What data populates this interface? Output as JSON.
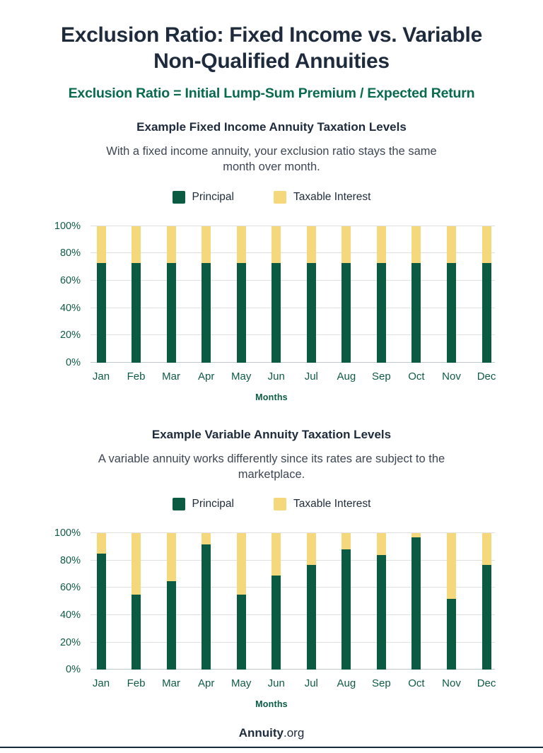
{
  "page": {
    "title": "Exclusion Ratio: Fixed Income vs. Variable Non-Qualified Annuities",
    "subtitle": "Exclusion Ratio = Initial Lump-Sum Premium / Expected Return",
    "footer": {
      "brand_bold": "Annuity",
      "brand_suffix": ".org"
    }
  },
  "colors": {
    "principal_green": "#0B5B43",
    "taxable_yellow": "#F5D77C",
    "heading_navy": "#1E2B3C",
    "accent_green": "#086A4F",
    "axis_green": "#0E5B45",
    "gridline_gray": "#E0E0E0",
    "footer_rule_navy": "#16293B"
  },
  "chart_data": [
    {
      "type": "bar",
      "stacked": true,
      "title": "Example Fixed Income Annuity Taxation Levels",
      "description": "With a fixed income annuity, your exclusion ratio stays the same month over month.",
      "xlabel": "Months",
      "ylabel": "",
      "ylim": [
        0,
        100
      ],
      "yticks": [
        "0%",
        "20%",
        "40%",
        "60%",
        "80%",
        "100%"
      ],
      "grid": true,
      "legend_position": "top",
      "categories": [
        "Jan",
        "Feb",
        "Mar",
        "Apr",
        "May",
        "Jun",
        "Jul",
        "Aug",
        "Sep",
        "Oct",
        "Nov",
        "Dec"
      ],
      "series": [
        {
          "name": "Principal",
          "color": "#0B5B43",
          "values": [
            73,
            73,
            73,
            73,
            73,
            73,
            73,
            73,
            73,
            73,
            73,
            73
          ]
        },
        {
          "name": "Taxable Interest",
          "color": "#F5D77C",
          "values": [
            27,
            27,
            27,
            27,
            27,
            27,
            27,
            27,
            27,
            27,
            27,
            27
          ]
        }
      ]
    },
    {
      "type": "bar",
      "stacked": true,
      "title": "Example Variable Annuity Taxation Levels",
      "description": "A variable annuity works differently since its rates are subject to the marketplace.",
      "xlabel": "Months",
      "ylabel": "",
      "ylim": [
        0,
        100
      ],
      "yticks": [
        "0%",
        "20%",
        "40%",
        "60%",
        "80%",
        "100%"
      ],
      "grid": true,
      "legend_position": "top",
      "categories": [
        "Jan",
        "Feb",
        "Mar",
        "Apr",
        "May",
        "Jun",
        "Jul",
        "Aug",
        "Sep",
        "Oct",
        "Nov",
        "Dec"
      ],
      "series": [
        {
          "name": "Principal",
          "color": "#0B5B43",
          "values": [
            85,
            55,
            65,
            92,
            55,
            69,
            77,
            88,
            84,
            97,
            52,
            77
          ]
        },
        {
          "name": "Taxable Interest",
          "color": "#F5D77C",
          "values": [
            15,
            45,
            35,
            8,
            45,
            31,
            23,
            12,
            16,
            3,
            48,
            23
          ]
        }
      ]
    }
  ]
}
